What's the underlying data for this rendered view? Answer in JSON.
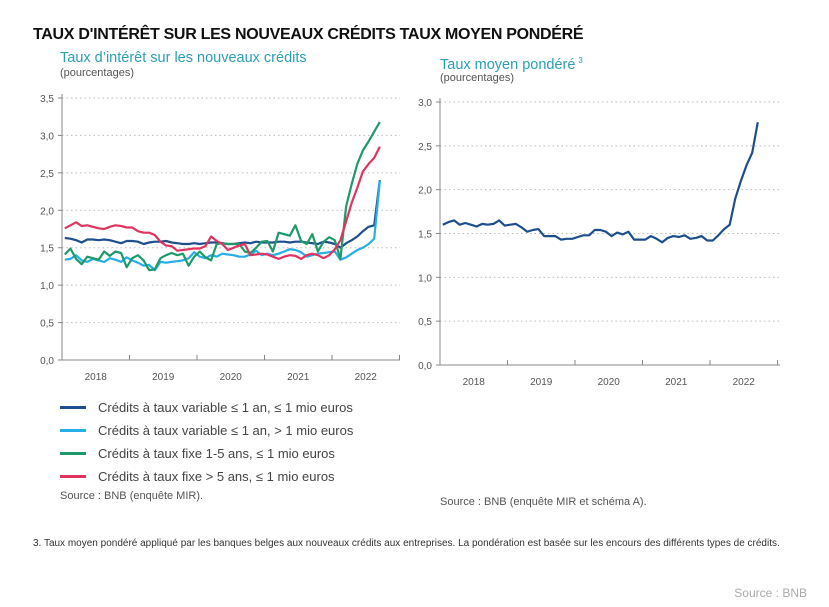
{
  "main_title": "TAUX D'INTÉRÊT SUR LES NOUVEAUX CRÉDITS  TAUX MOYEN PONDÉRÉ",
  "footnote": "3. Taux moyen pondéré appliqué par les banques belges aux nouveaux crédits aux entreprises. La pondération est basée sur les encours des différents types de crédits.",
  "credit": "Source : BNB",
  "chart_data": [
    {
      "type": "line",
      "title": "Taux d’intérêt sur les nouveaux crédits",
      "subtitle": "(pourcentages)",
      "source": "Source : BNB (enquête MIR).",
      "x_tick_labels": [
        "2018",
        "2019",
        "2020",
        "2021",
        "2022"
      ],
      "y_tick_labels": [
        "0,0",
        "0,5",
        "1,0",
        "1,5",
        "2,0",
        "2,5",
        "3,0",
        "3,5"
      ],
      "ylim": [
        0,
        3.5
      ],
      "x_range": [
        "2018-01",
        "2022-09"
      ],
      "frequency": "monthly",
      "grid": "horizontal dotted",
      "legend_placement": "bottom",
      "series": [
        {
          "name": "Crédits à taux variable ≤ 1 an, ≤ 1 mio euros",
          "color": "#1f4e8c",
          "values": [
            1.63,
            1.62,
            1.6,
            1.57,
            1.61,
            1.61,
            1.6,
            1.61,
            1.6,
            1.58,
            1.56,
            1.59,
            1.59,
            1.58,
            1.55,
            1.57,
            1.58,
            1.58,
            1.59,
            1.57,
            1.56,
            1.55,
            1.55,
            1.56,
            1.55,
            1.56,
            1.57,
            1.57,
            1.56,
            1.55,
            1.55,
            1.56,
            1.57,
            1.56,
            1.58,
            1.57,
            1.57,
            1.57,
            1.58,
            1.58,
            1.57,
            1.58,
            1.58,
            1.57,
            1.56,
            1.55,
            1.58,
            1.57,
            1.55,
            1.5,
            1.56,
            1.6,
            1.65,
            1.72,
            1.78,
            1.8,
            2.4
          ]
        },
        {
          "name": "Crédits à taux variable ≤ 1 an, > 1 mio euros",
          "color": "#27aee6",
          "values": [
            1.34,
            1.35,
            1.4,
            1.33,
            1.31,
            1.35,
            1.33,
            1.31,
            1.36,
            1.34,
            1.31,
            1.37,
            1.33,
            1.3,
            1.26,
            1.27,
            1.2,
            1.31,
            1.3,
            1.31,
            1.32,
            1.33,
            1.36,
            1.44,
            1.38,
            1.36,
            1.4,
            1.38,
            1.42,
            1.41,
            1.4,
            1.38,
            1.38,
            1.41,
            1.46,
            1.4,
            1.42,
            1.4,
            1.42,
            1.45,
            1.48,
            1.47,
            1.44,
            1.38,
            1.4,
            1.42,
            1.43,
            1.44,
            1.45,
            1.34,
            1.37,
            1.42,
            1.47,
            1.5,
            1.55,
            1.62,
            2.39
          ]
        },
        {
          "name": "Crédits à taux fixe 1-5 ans, ≤ 1 mio euros",
          "color": "#1e9a6a",
          "values": [
            1.41,
            1.49,
            1.35,
            1.28,
            1.38,
            1.36,
            1.34,
            1.45,
            1.39,
            1.45,
            1.43,
            1.24,
            1.36,
            1.4,
            1.33,
            1.2,
            1.21,
            1.36,
            1.4,
            1.43,
            1.4,
            1.42,
            1.26,
            1.38,
            1.45,
            1.37,
            1.33,
            1.55,
            1.56,
            1.55,
            1.55,
            1.55,
            1.45,
            1.43,
            1.5,
            1.58,
            1.59,
            1.45,
            1.7,
            1.68,
            1.66,
            1.8,
            1.59,
            1.55,
            1.68,
            1.45,
            1.58,
            1.64,
            1.6,
            1.35,
            2.05,
            2.35,
            2.62,
            2.8,
            2.92,
            3.05,
            3.18
          ]
        },
        {
          "name": "Crédits à taux fixe > 5 ans, ≤ 1 mio euros",
          "color": "#e0345f",
          "values": [
            1.76,
            1.8,
            1.84,
            1.79,
            1.8,
            1.78,
            1.76,
            1.75,
            1.78,
            1.8,
            1.79,
            1.77,
            1.77,
            1.72,
            1.7,
            1.7,
            1.67,
            1.58,
            1.53,
            1.52,
            1.46,
            1.47,
            1.48,
            1.49,
            1.49,
            1.52,
            1.65,
            1.59,
            1.55,
            1.47,
            1.5,
            1.53,
            1.55,
            1.4,
            1.41,
            1.42,
            1.41,
            1.38,
            1.35,
            1.38,
            1.4,
            1.39,
            1.35,
            1.4,
            1.42,
            1.4,
            1.36,
            1.4,
            1.48,
            1.6,
            1.85,
            2.1,
            2.3,
            2.52,
            2.62,
            2.7,
            2.85
          ]
        }
      ]
    },
    {
      "type": "line",
      "title": "Taux moyen pondéré",
      "title_sup": "3",
      "subtitle": "(pourcentages)",
      "source": "Source : BNB (enquête MIR et schéma A).",
      "x_tick_labels": [
        "2018",
        "2019",
        "2020",
        "2021",
        "2022"
      ],
      "y_tick_labels": [
        "0,0",
        "0,5",
        "1,0",
        "1,5",
        "2,0",
        "2,5",
        "3,0"
      ],
      "ylim": [
        0,
        3.0
      ],
      "x_range": [
        "2018-01",
        "2022-09"
      ],
      "frequency": "monthly",
      "grid": "horizontal dotted",
      "series": [
        {
          "color": "#1f4e8c",
          "values": [
            1.6,
            1.63,
            1.65,
            1.6,
            1.62,
            1.6,
            1.58,
            1.61,
            1.6,
            1.61,
            1.65,
            1.59,
            1.6,
            1.61,
            1.57,
            1.52,
            1.54,
            1.55,
            1.47,
            1.47,
            1.47,
            1.43,
            1.44,
            1.44,
            1.46,
            1.48,
            1.48,
            1.54,
            1.54,
            1.52,
            1.47,
            1.51,
            1.49,
            1.52,
            1.43,
            1.43,
            1.43,
            1.47,
            1.44,
            1.4,
            1.45,
            1.47,
            1.46,
            1.48,
            1.44,
            1.45,
            1.47,
            1.42,
            1.42,
            1.48,
            1.55,
            1.6,
            1.9,
            2.1,
            2.28,
            2.42,
            2.77
          ]
        }
      ]
    }
  ]
}
